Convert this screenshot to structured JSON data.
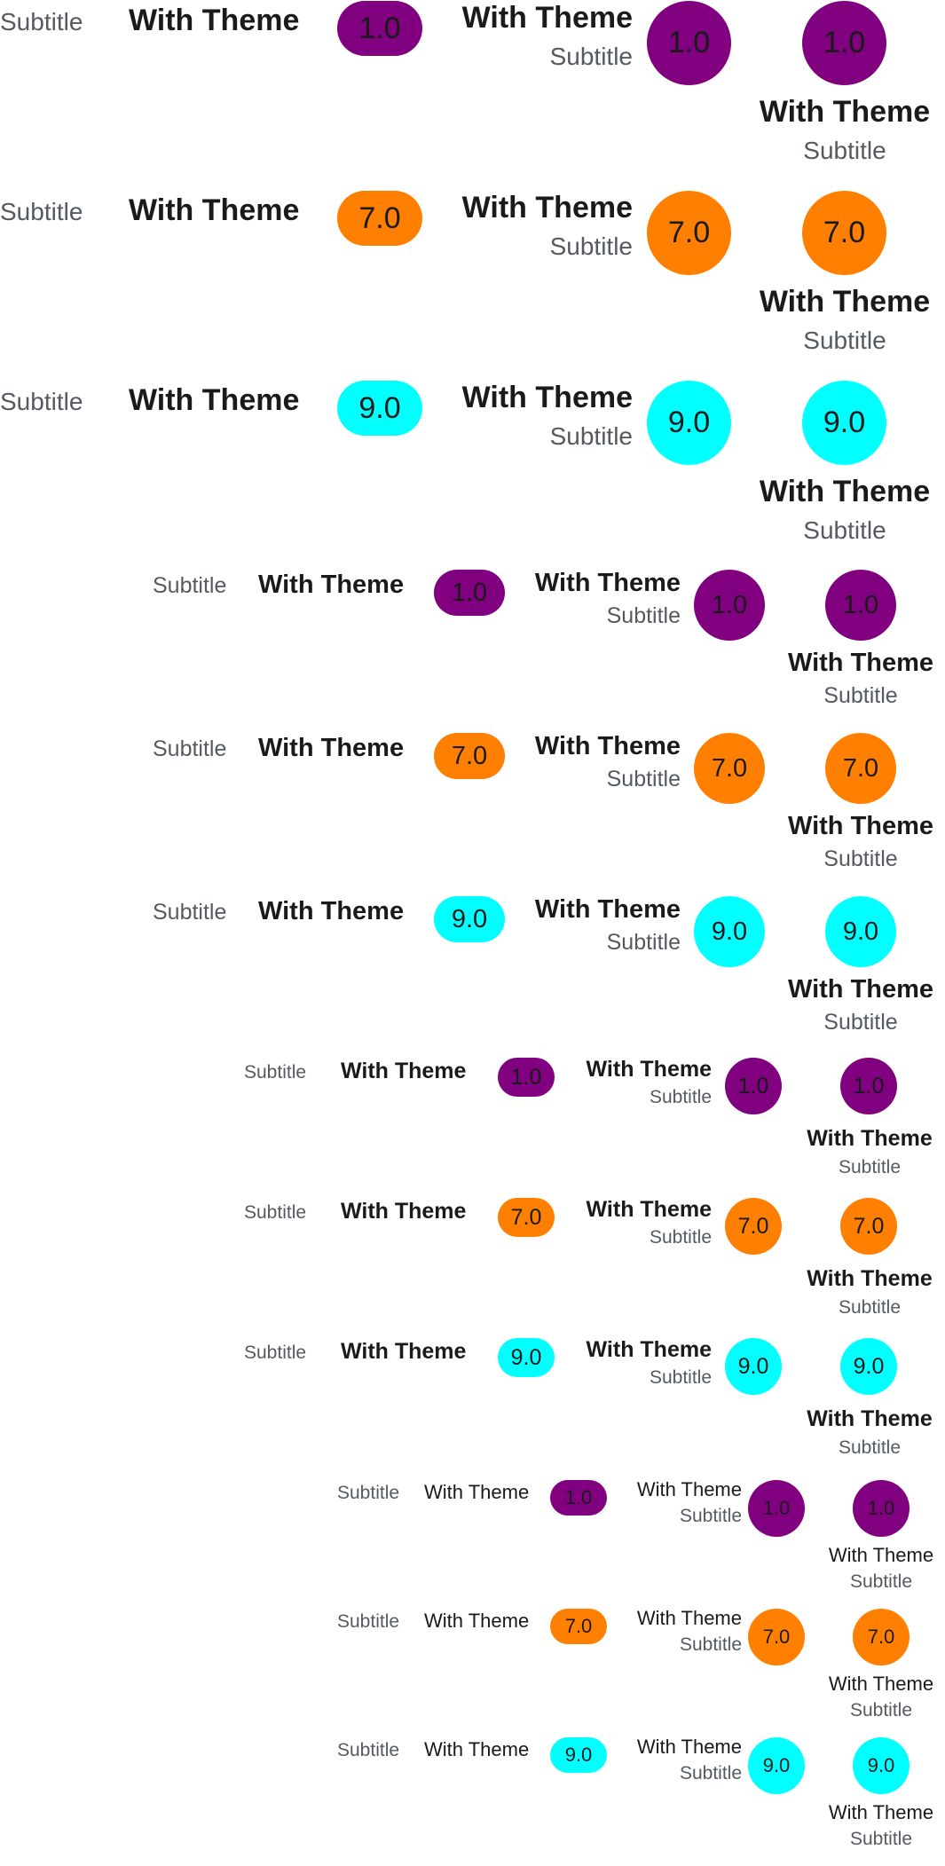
{
  "title_text": "With Theme",
  "subtitle_text": "Subtitle",
  "sizes": [
    "large",
    "medium",
    "small",
    "xsmall"
  ],
  "variants": [
    {
      "id": "purple",
      "value": "1.0",
      "color": "#800080"
    },
    {
      "id": "orange",
      "value": "7.0",
      "color": "#ff8000"
    },
    {
      "id": "cyan",
      "value": "9.0",
      "color": "#00ffff"
    }
  ]
}
